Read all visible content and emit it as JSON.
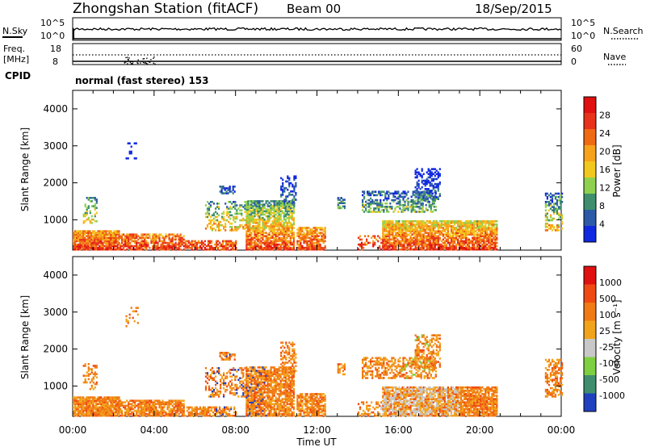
{
  "header": {
    "title": "Zhongshan Station (fitACF)",
    "beam": "Beam 00",
    "date": "18/Sep/2015"
  },
  "top_panels": {
    "nsky_label": "N.Sky",
    "nsky_ticks": [
      "10^5",
      "10^0"
    ],
    "nsearch_label": "N.Search",
    "freq_label_1": "Freq.",
    "freq_label_2": "[MHz]",
    "freq_ticks": [
      "18",
      "8"
    ],
    "nave_label": "Nave",
    "nave_ticks": [
      "60",
      "0"
    ],
    "cpid_label": "CPID",
    "cpid_text": "normal (fast stereo) 153"
  },
  "colors": {
    "power": [
      "#1028e0",
      "#2d5aa8",
      "#3f8f6e",
      "#8fd14f",
      "#f2c81e",
      "#f7a21c",
      "#f06a14",
      "#e8321a",
      "#e01010"
    ],
    "velocity": [
      "#2040c0",
      "#3f8f6e",
      "#7fd040",
      "#c8c8c8",
      "#f2a31c",
      "#f07a14",
      "#f04a14",
      "#e01010"
    ]
  },
  "chart_data": [
    {
      "type": "heatmap",
      "name": "Power",
      "ylabel": "Slant Range [km]",
      "xlabel": "",
      "yticks": [
        1000,
        2000,
        3000,
        4000
      ],
      "ylim": [
        180,
        4500
      ],
      "xticks": [
        "00:00",
        "04:00",
        "08:00",
        "12:00",
        "16:00",
        "20:00",
        "00:00"
      ],
      "xlim_hours": [
        0,
        24
      ],
      "colorbar_label": "Power [dB]",
      "colorbar_ticks": [
        "4",
        "8",
        "12",
        "16",
        "20",
        "24",
        "28"
      ]
    },
    {
      "type": "heatmap",
      "name": "Velocity",
      "ylabel": "Slant Range [km]",
      "xlabel": "Time UT",
      "yticks": [
        1000,
        2000,
        3000,
        4000
      ],
      "ylim": [
        180,
        4500
      ],
      "xticks": [
        "00:00",
        "04:00",
        "08:00",
        "12:00",
        "16:00",
        "20:00",
        "00:00"
      ],
      "xlim_hours": [
        0,
        24
      ],
      "colorbar_label": "Velocity [m s⁻¹]",
      "colorbar_ticks": [
        "1000",
        "500",
        "100",
        "25",
        "-25",
        "-100",
        "-500",
        "-1000"
      ]
    }
  ]
}
